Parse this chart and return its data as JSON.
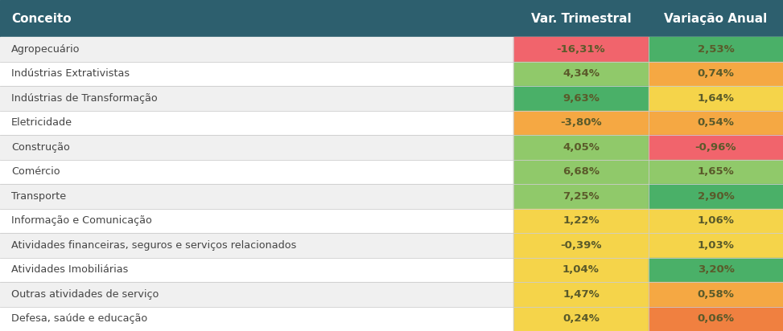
{
  "header_bg": "#2d5f6e",
  "header_text_color": "#ffffff",
  "col0_header": "Conceito",
  "col1_header": "Var. Trimestral",
  "col2_header": "Variação Anual",
  "rows": [
    {
      "conceito": "Agropecuário",
      "var_trim": "-16,31%",
      "var_anual": "2,53%"
    },
    {
      "conceito": "Indústrias Extrativistas",
      "var_trim": "4,34%",
      "var_anual": "0,74%"
    },
    {
      "conceito": "Indústrias de Transformação",
      "var_trim": "9,63%",
      "var_anual": "1,64%"
    },
    {
      "conceito": "Eletricidade",
      "var_trim": "-3,80%",
      "var_anual": "0,54%"
    },
    {
      "conceito": "Construção",
      "var_trim": "4,05%",
      "var_anual": "-0,96%"
    },
    {
      "conceito": "Comércio",
      "var_trim": "6,68%",
      "var_anual": "1,65%"
    },
    {
      "conceito": "Transporte",
      "var_trim": "7,25%",
      "var_anual": "2,90%"
    },
    {
      "conceito": "Informação e Comunicação",
      "var_trim": "1,22%",
      "var_anual": "1,06%"
    },
    {
      "conceito": "Atividades financeiras, seguros e serviços relacionados",
      "var_trim": "-0,39%",
      "var_anual": "1,03%"
    },
    {
      "conceito": "Atividades Imobiliárias",
      "var_trim": "1,04%",
      "var_anual": "3,20%"
    },
    {
      "conceito": "Outras atividades de serviço",
      "var_trim": "1,47%",
      "var_anual": "0,58%"
    },
    {
      "conceito": "Defesa, saúde e educação",
      "var_trim": "0,24%",
      "var_anual": "0,06%"
    }
  ],
  "cell_colors_trim": [
    "#f1646c",
    "#90c96a",
    "#4ab068",
    "#f5a843",
    "#90c96a",
    "#90c96a",
    "#90c96a",
    "#f5d44a",
    "#f5d44a",
    "#f5d44a",
    "#f5d44a",
    "#f5d44a"
  ],
  "cell_colors_anual": [
    "#4ab068",
    "#f5a843",
    "#f5d44a",
    "#f5a843",
    "#f1646c",
    "#90c96a",
    "#4ab068",
    "#f5d44a",
    "#f5d44a",
    "#4ab068",
    "#f5a843",
    "#f08040"
  ],
  "row_bg_odd": "#f0f0f0",
  "row_bg_even": "#ffffff",
  "cell_text_color": "#5a5a2a",
  "figure_bg": "#ffffff"
}
